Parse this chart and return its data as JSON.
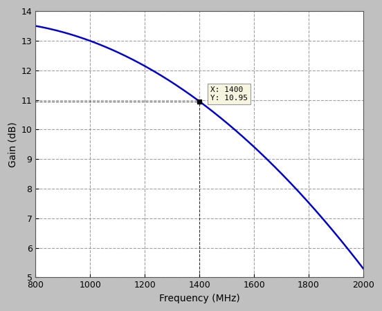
{
  "title": "",
  "xlabel": "Frequency (MHz)",
  "ylabel": "Gain (dB)",
  "xlim": [
    800,
    2000
  ],
  "ylim": [
    5,
    14
  ],
  "xticks": [
    800,
    1000,
    1200,
    1400,
    1600,
    1800,
    2000
  ],
  "yticks": [
    5,
    6,
    7,
    8,
    9,
    10,
    11,
    12,
    13,
    14
  ],
  "line_color": "#0000cc",
  "line_width": 1.8,
  "marker_x": 1400,
  "marker_y": 10.95,
  "annotation_text": "X: 1400\nY: 10.95",
  "background_color": "#c0c0c0",
  "axes_bg_color": "#ffffff",
  "grid_color": "#888888",
  "grid_style": "--",
  "grid_alpha": 0.8,
  "curve_points_x": [
    800,
    1000,
    1200,
    1400,
    1600,
    1800,
    2000
  ],
  "curve_points_y": [
    13.5,
    12.85,
    12.0,
    10.95,
    10.05,
    8.0,
    5.3
  ]
}
